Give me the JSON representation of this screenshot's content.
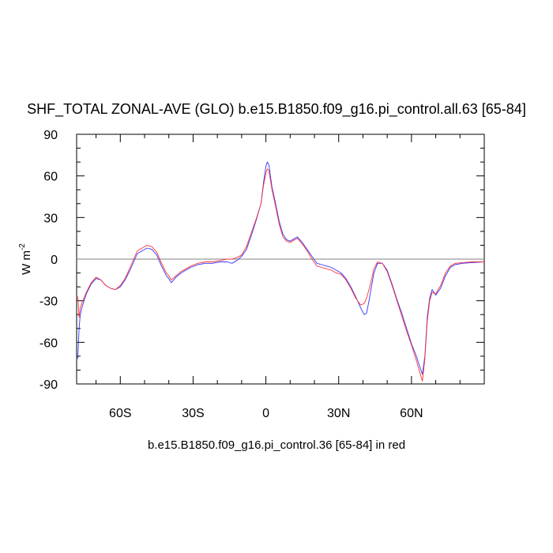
{
  "chart_data": {
    "type": "line",
    "title": "SHF_TOTAL ZONAL-AVE (GLO) b.e15.B1850.f09_g16.pi_control.all.63 [65-84]",
    "ylabel_main": "W m",
    "ylabel_sup": "-2",
    "footer": "b.e15.B1850.f09_g16.pi_control.36 [65-84] in red",
    "xlim": [
      -78,
      90
    ],
    "ylim": [
      -90,
      90
    ],
    "x_ticks": [
      {
        "value": -60,
        "label": "60S"
      },
      {
        "value": -30,
        "label": "30S"
      },
      {
        "value": 0,
        "label": "0"
      },
      {
        "value": 30,
        "label": "30N"
      },
      {
        "value": 60,
        "label": "60N"
      }
    ],
    "y_ticks": [
      {
        "value": 90,
        "label": "90"
      },
      {
        "value": 60,
        "label": "60"
      },
      {
        "value": 30,
        "label": "30"
      },
      {
        "value": 0,
        "label": "0"
      },
      {
        "value": -30,
        "label": "-30"
      },
      {
        "value": -60,
        "label": "-60"
      },
      {
        "value": -90,
        "label": "-90"
      }
    ],
    "reference_line": 0,
    "series": [
      {
        "color": "#3333ff",
        "points": [
          [
            -77.5,
            -72
          ],
          [
            -77,
            -50
          ],
          [
            -76.5,
            -40
          ],
          [
            -75.5,
            -33
          ],
          [
            -74,
            -25
          ],
          [
            -72,
            -18
          ],
          [
            -70,
            -14
          ],
          [
            -68,
            -15
          ],
          [
            -66,
            -19
          ],
          [
            -64,
            -21
          ],
          [
            -62,
            -22
          ],
          [
            -60,
            -20
          ],
          [
            -58,
            -15
          ],
          [
            -56,
            -8
          ],
          [
            -54,
            0
          ],
          [
            -53,
            4
          ],
          [
            -51,
            6
          ],
          [
            -49,
            8
          ],
          [
            -47,
            7
          ],
          [
            -45,
            3
          ],
          [
            -43,
            -5
          ],
          [
            -41,
            -12
          ],
          [
            -40,
            -14
          ],
          [
            -39,
            -17
          ],
          [
            -37,
            -13
          ],
          [
            -35,
            -10
          ],
          [
            -33,
            -8
          ],
          [
            -31,
            -6
          ],
          [
            -28,
            -4
          ],
          [
            -25,
            -3
          ],
          [
            -22,
            -3
          ],
          [
            -19,
            -2
          ],
          [
            -16,
            -2
          ],
          [
            -14,
            -3
          ],
          [
            -12,
            -1
          ],
          [
            -10,
            2
          ],
          [
            -8,
            7
          ],
          [
            -6,
            17
          ],
          [
            -4,
            28
          ],
          [
            -2,
            40
          ],
          [
            -1,
            55
          ],
          [
            0,
            67
          ],
          [
            0.6,
            70
          ],
          [
            1.2,
            68
          ],
          [
            2.5,
            52
          ],
          [
            4,
            40
          ],
          [
            5.5,
            27
          ],
          [
            7,
            18
          ],
          [
            8.5,
            14
          ],
          [
            10,
            13
          ],
          [
            12,
            15
          ],
          [
            13,
            16
          ],
          [
            15,
            12
          ],
          [
            17,
            7
          ],
          [
            19,
            2
          ],
          [
            21,
            -3
          ],
          [
            23,
            -4
          ],
          [
            25,
            -5
          ],
          [
            27,
            -6
          ],
          [
            29,
            -8
          ],
          [
            31,
            -10
          ],
          [
            33,
            -14
          ],
          [
            35,
            -20
          ],
          [
            37,
            -27
          ],
          [
            39,
            -35
          ],
          [
            40.5,
            -40
          ],
          [
            41.5,
            -39
          ],
          [
            42.5,
            -30
          ],
          [
            43.5,
            -20
          ],
          [
            44.5,
            -10
          ],
          [
            46,
            -3
          ],
          [
            48,
            -3
          ],
          [
            50,
            -8
          ],
          [
            52,
            -18
          ],
          [
            54,
            -29
          ],
          [
            56,
            -39
          ],
          [
            58,
            -50
          ],
          [
            60,
            -61
          ],
          [
            62,
            -70
          ],
          [
            63.5,
            -78
          ],
          [
            64.5,
            -83
          ],
          [
            65.5,
            -70
          ],
          [
            66.5,
            -42
          ],
          [
            67.5,
            -28
          ],
          [
            68.5,
            -22
          ],
          [
            70,
            -26
          ],
          [
            72,
            -21
          ],
          [
            74,
            -12
          ],
          [
            76,
            -6
          ],
          [
            78,
            -4
          ],
          [
            81,
            -3
          ],
          [
            85,
            -2.5
          ],
          [
            90,
            -2
          ]
        ]
      },
      {
        "color": "#ff3333",
        "points": [
          [
            -77.5,
            -27
          ],
          [
            -77,
            -42
          ],
          [
            -76.5,
            -35
          ],
          [
            -75.5,
            -30
          ],
          [
            -74,
            -24
          ],
          [
            -72,
            -17
          ],
          [
            -70,
            -13
          ],
          [
            -68,
            -15
          ],
          [
            -66,
            -19
          ],
          [
            -64,
            -21
          ],
          [
            -62,
            -22
          ],
          [
            -60,
            -19
          ],
          [
            -58,
            -14
          ],
          [
            -56,
            -6
          ],
          [
            -54,
            2
          ],
          [
            -53,
            6
          ],
          [
            -51,
            8
          ],
          [
            -49,
            10
          ],
          [
            -47,
            9
          ],
          [
            -45,
            5
          ],
          [
            -43,
            -3
          ],
          [
            -41,
            -10
          ],
          [
            -40,
            -12
          ],
          [
            -39,
            -15
          ],
          [
            -37,
            -12
          ],
          [
            -35,
            -9
          ],
          [
            -33,
            -7
          ],
          [
            -31,
            -5
          ],
          [
            -28,
            -3
          ],
          [
            -25,
            -2
          ],
          [
            -22,
            -2
          ],
          [
            -19,
            -1
          ],
          [
            -16,
            0
          ],
          [
            -14,
            0
          ],
          [
            -12,
            1
          ],
          [
            -10,
            3
          ],
          [
            -8,
            9
          ],
          [
            -6,
            19
          ],
          [
            -4,
            29
          ],
          [
            -2,
            40
          ],
          [
            -1,
            53
          ],
          [
            0,
            62
          ],
          [
            0.6,
            65
          ],
          [
            1.2,
            64
          ],
          [
            2.5,
            50
          ],
          [
            4,
            38
          ],
          [
            5.5,
            25
          ],
          [
            7,
            16
          ],
          [
            8.5,
            13
          ],
          [
            10,
            12
          ],
          [
            12,
            14
          ],
          [
            13,
            15
          ],
          [
            15,
            11
          ],
          [
            17,
            6
          ],
          [
            19,
            0
          ],
          [
            21,
            -5
          ],
          [
            23,
            -6
          ],
          [
            25,
            -7
          ],
          [
            27,
            -8
          ],
          [
            29,
            -10
          ],
          [
            31,
            -11
          ],
          [
            33,
            -15
          ],
          [
            35,
            -21
          ],
          [
            37,
            -28
          ],
          [
            39,
            -33
          ],
          [
            40.5,
            -32
          ],
          [
            41.5,
            -28
          ],
          [
            42.5,
            -22
          ],
          [
            43.5,
            -15
          ],
          [
            44.5,
            -7
          ],
          [
            46,
            -2
          ],
          [
            48,
            -3
          ],
          [
            50,
            -9
          ],
          [
            52,
            -19
          ],
          [
            54,
            -30
          ],
          [
            56,
            -41
          ],
          [
            58,
            -52
          ],
          [
            60,
            -62
          ],
          [
            62,
            -73
          ],
          [
            63.5,
            -82
          ],
          [
            64.5,
            -88
          ],
          [
            65.5,
            -72
          ],
          [
            66.5,
            -45
          ],
          [
            67.5,
            -30
          ],
          [
            68.5,
            -24
          ],
          [
            70,
            -25
          ],
          [
            72,
            -19
          ],
          [
            74,
            -10
          ],
          [
            76,
            -5
          ],
          [
            78,
            -3
          ],
          [
            81,
            -2.5
          ],
          [
            85,
            -2
          ],
          [
            90,
            -2
          ]
        ]
      }
    ]
  }
}
